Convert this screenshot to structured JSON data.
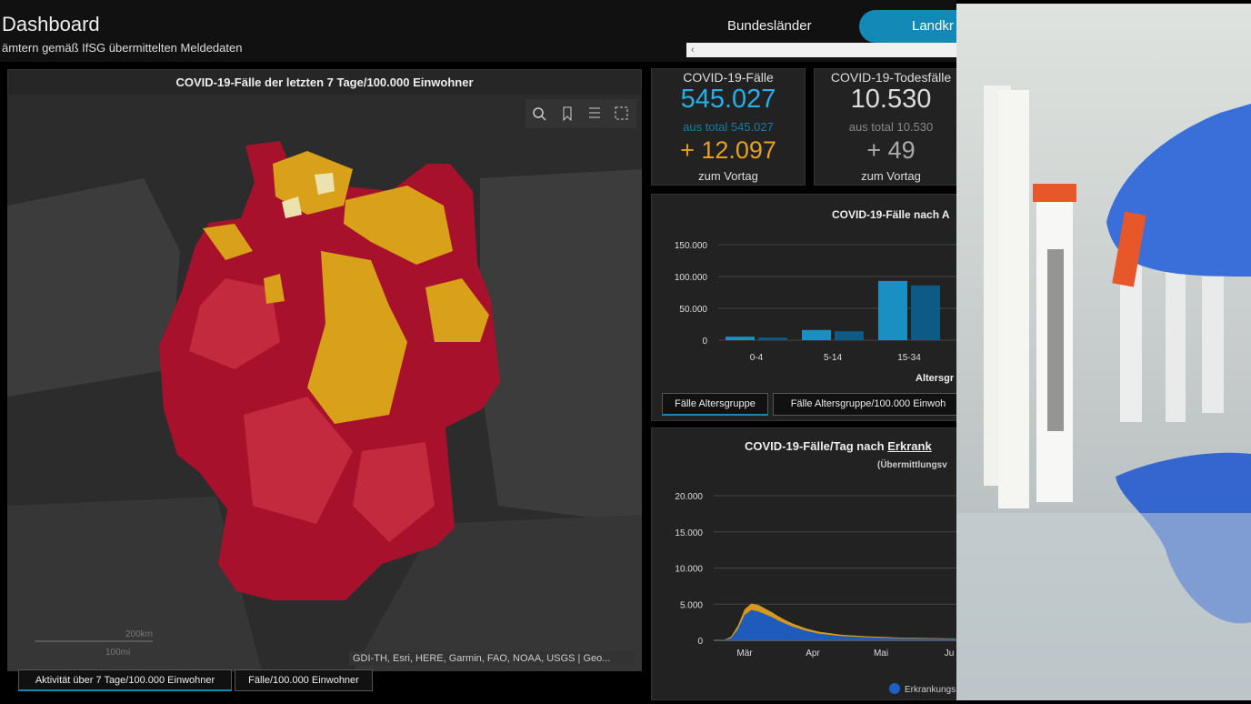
{
  "header": {
    "title": "Dashboard",
    "subtitle": "ämtern gemäß IfSG übermittelten Meldedaten"
  },
  "view_tabs": [
    "Bundesländer",
    "Landkr"
  ],
  "map": {
    "title": "COVID-19-Fälle der letzten 7 Tage/100.000 Einwohner",
    "scale": [
      "200km",
      "100mi"
    ],
    "attribution": "GDI-TH, Esri, HERE, Garmin, FAO, NOAA, USGS | Geo...",
    "tabs": [
      "Aktivität über 7 Tage/100.000 Einwohner",
      "Fälle/100.000 Einwohner"
    ]
  },
  "stats": [
    {
      "label": "COVID-19-Fälle",
      "value": "545.027",
      "total": "aus total 545.027",
      "delta": "+ 12.097",
      "delta_label": "zum Vortag"
    },
    {
      "label": "COVID-19-Todesfälle",
      "value": "10.530",
      "total": "aus total 10.530",
      "delta": "+ 49",
      "delta_label": "zum Vortag"
    }
  ],
  "age_chart": {
    "type": "bar",
    "title": "COVID-19-Fälle nach A",
    "x_label": "Altersgr",
    "categories": [
      "0-4",
      "5-14",
      "15-34"
    ],
    "series": [
      {
        "color": "#1a8fc1",
        "values": [
          5500,
          16000,
          93000
        ]
      },
      {
        "color": "#0e5a87",
        "values": [
          4000,
          14000,
          86000
        ]
      }
    ],
    "ylim": [
      0,
      150000
    ],
    "yticks": [
      0,
      {
        "value": 50000,
        "label": "50.000"
      },
      {
        "value": 100000,
        "label": "100.000"
      },
      {
        "value": 150000,
        "label": "150.000"
      }
    ],
    "grid": true,
    "tabs": [
      "Fälle Altersgruppe",
      "Fälle Altersgruppe/100.000 Einwoh"
    ]
  },
  "daily_chart": {
    "type": "area",
    "title": "COVID-19-Fälle/Tag nach",
    "title_link": "Erkrank",
    "subtitle": "(Übermittlungsv",
    "categories": [
      null,
      null,
      null,
      null,
      "Mär",
      null,
      null,
      null,
      null,
      null,
      null,
      null,
      null,
      null,
      "Apr",
      null,
      null,
      null,
      null,
      null,
      null,
      null,
      null,
      null,
      "Mai",
      null,
      null,
      null,
      null,
      null,
      null,
      null,
      null,
      null,
      "Ju",
      null
    ],
    "series": [
      {
        "name": "Erkrankungs",
        "color": "#1f5fc4",
        "values": [
          0,
          50,
          300,
          1500,
          3500,
          4200,
          4000,
          3600,
          3200,
          2700,
          2300,
          1900,
          1600,
          1300,
          1100,
          900,
          800,
          700,
          600,
          550,
          500,
          450,
          400,
          380,
          350,
          330,
          300,
          280,
          260,
          250,
          240,
          230,
          220,
          210,
          200,
          200
        ]
      },
      {
        "color": "#e0a020",
        "values": [
          0,
          20,
          200,
          500,
          800,
          900,
          900,
          800,
          700,
          600,
          500,
          450,
          400,
          350,
          300,
          280,
          250,
          230,
          200,
          180,
          170,
          160,
          150,
          140,
          130,
          120,
          110,
          100,
          100,
          90,
          90,
          80,
          80,
          80,
          70,
          70
        ]
      }
    ],
    "ylim": [
      0,
      20000
    ],
    "yticks": [
      0,
      {
        "value": 5000,
        "label": "5.000"
      },
      {
        "value": 10000,
        "label": "10.000"
      },
      {
        "value": 15000,
        "label": "15.000"
      },
      {
        "value": 20000,
        "label": "20.000"
      }
    ],
    "grid": true
  }
}
